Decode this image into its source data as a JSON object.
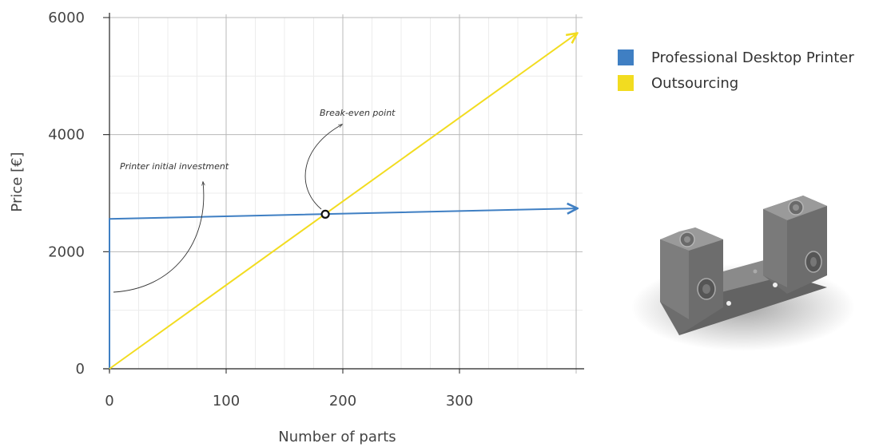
{
  "chart_data": {
    "type": "line",
    "xlabel": "Number of parts",
    "ylabel": "Price [€]",
    "xlim": [
      0,
      400
    ],
    "ylim": [
      0,
      6000
    ],
    "x_ticks": [
      "0",
      "100",
      "200",
      "300"
    ],
    "y_ticks": [
      "0",
      "2000",
      "4000",
      "6000"
    ],
    "grid": true,
    "legend_position": "top-right",
    "series": [
      {
        "name": "Professional Desktop Printer",
        "color": "#3f7fc3",
        "x": [
          0,
          0,
          400
        ],
        "y": [
          0,
          2560,
          2740
        ]
      },
      {
        "name": "Outsourcing",
        "color": "#f2dc20",
        "x": [
          0,
          400
        ],
        "y": [
          0,
          5720
        ]
      }
    ],
    "annotations": [
      {
        "text": "Break-even point",
        "x": 185,
        "y": 2640
      },
      {
        "text": "Printer initial investment",
        "x": 0,
        "y": 2560
      }
    ],
    "marker": {
      "x": 185,
      "y": 2640
    }
  },
  "image": {
    "name": "bracket-part-3d-render"
  }
}
